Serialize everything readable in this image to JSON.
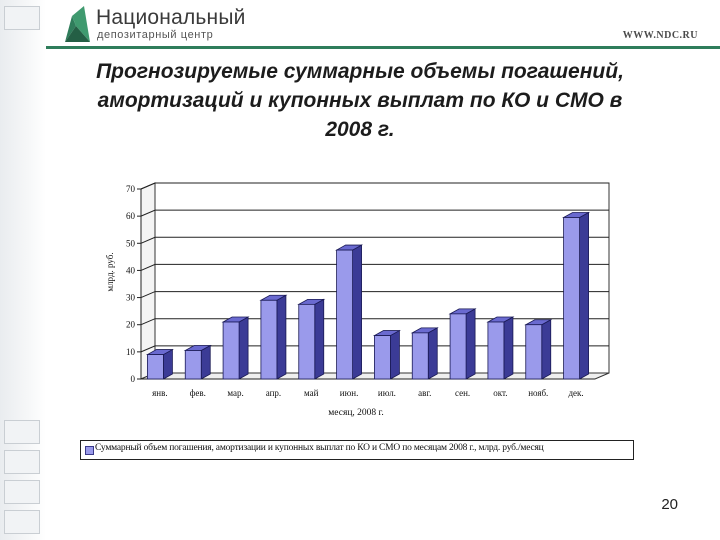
{
  "header": {
    "logo_name": "Национальный",
    "logo_subtitle": "депозитарный центр",
    "site_url": "WWW.NDC.RU",
    "accent_color": "#2f7d5b"
  },
  "slide": {
    "title_lines": [
      "Прогнозируемые суммарные объемы погашений,",
      "амортизаций и купонных выплат по КО и СМО в",
      "2008 г."
    ],
    "page_number": "20"
  },
  "chart_data": {
    "type": "bar",
    "categories": [
      "янв.",
      "фев.",
      "мар.",
      "апр.",
      "май",
      "июн.",
      "июл.",
      "авг.",
      "сен.",
      "окт.",
      "нояб.",
      "дек."
    ],
    "series": [
      {
        "name": "Суммарный объем погашения, амортизации и купонных выплат по КО и СМО по месяцам 2008 г., млрд. руб./месяц",
        "values": [
          9,
          10.5,
          21,
          29,
          27.5,
          47.5,
          16,
          17,
          24,
          21,
          20,
          59.5
        ],
        "color": "#9a9aeb"
      }
    ],
    "ylim": [
      0,
      70
    ],
    "yticks": [
      "0",
      "10",
      "20",
      "30",
      "40",
      "50",
      "60",
      "70"
    ],
    "ylabel": "млрд. руб.",
    "xlabel": "месяц, 2008 г.",
    "grid": true,
    "legend_position": "bottom",
    "style": "3d"
  }
}
